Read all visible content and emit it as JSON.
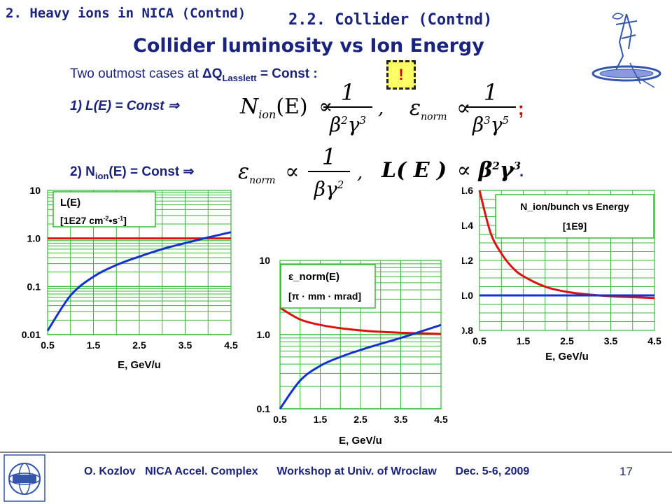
{
  "header": {
    "section": "2. Heavy ions in NICA (Contnd)",
    "subsection": "2.2. Collider (Contnd)",
    "title": "Collider luminosity vs Ion Energy"
  },
  "intro": {
    "text_a": "Two outmost cases at ",
    "delta": "Δ",
    "q": "Q",
    "q_sub": "Lasslett",
    "text_b": " = Const :",
    "bang": "!"
  },
  "case1": {
    "label": "1) L(E) = Const  ⇒",
    "f1_lhs": "N",
    "f1_lhs_sub": "ion",
    "f1_arg": "(E)",
    "prop": "∝",
    "one": "1",
    "beta": "β",
    "gamma": "γ",
    "exp2": "2",
    "exp3": "3",
    "exp5": "5",
    "eps": "ε",
    "eps_sub": "norm",
    "comma": ",",
    "semicolon": ";"
  },
  "case2": {
    "label_a": "2) N",
    "label_sub": "ion",
    "label_b": "(E) = Const ⇒",
    "lhs2": "L( E )",
    "period": "."
  },
  "footer": {
    "text": "O. Kozlov   NICA Accel. Complex      Workshop at Univ. of Wroclaw      Dec. 5-6, 2009",
    "page": "17"
  },
  "logos": {
    "left": "jinr-logo",
    "right": "nica-logo"
  },
  "colors": {
    "red": "#dd1111",
    "blue": "#1133cc",
    "grid": "#33bb33",
    "text": "#1a237e"
  },
  "chart_data": [
    {
      "type": "line",
      "scale": "log",
      "ylim": [
        0.01,
        10
      ],
      "xlim": [
        0.5,
        4.5
      ],
      "xticks": [
        "0.5",
        "1.5",
        "2.5",
        "3.5",
        "4.5"
      ],
      "yticks": [
        "0.01",
        "0.1",
        "1.0",
        "10"
      ],
      "xlabel": "E, GeV/u",
      "legend_title": "L(E)",
      "legend_unit": "[1E27 cm",
      "legend_unit_e1": "-2",
      "legend_unit_mid": "•s",
      "legend_unit_e2": "-1",
      "legend_unit_end": "]",
      "series": [
        {
          "color": "#dd1111",
          "x": [
            0.5,
            4.5
          ],
          "y": [
            1.0,
            1.0
          ]
        },
        {
          "color": "#1133cc",
          "x": [
            0.5,
            1.0,
            1.5,
            2.0,
            2.5,
            3.0,
            3.5,
            4.0,
            4.5
          ],
          "y": [
            0.012,
            0.065,
            0.16,
            0.28,
            0.42,
            0.6,
            0.8,
            1.05,
            1.35
          ]
        }
      ]
    },
    {
      "type": "line",
      "scale": "log",
      "ylim": [
        0.1,
        10
      ],
      "xlim": [
        0.5,
        4.5
      ],
      "xticks": [
        "0.5",
        "1.5",
        "2.5",
        "3.5",
        "4.5"
      ],
      "yticks": [
        "0.1",
        "1.0",
        "10"
      ],
      "xlabel": "E, GeV/u",
      "legend_title_eps": "ε",
      "legend_title": "_norm(E)",
      "legend_unit_a": "[",
      "legend_unit_pi": "π",
      "legend_unit_b": " · mm · mrad]",
      "series": [
        {
          "color": "#dd1111",
          "x": [
            0.5,
            1.0,
            1.5,
            2.0,
            2.5,
            3.0,
            3.5,
            4.0,
            4.5
          ],
          "y": [
            2.3,
            1.6,
            1.35,
            1.22,
            1.14,
            1.09,
            1.06,
            1.04,
            1.02
          ]
        },
        {
          "color": "#1133cc",
          "x": [
            0.5,
            1.0,
            1.5,
            2.0,
            2.5,
            3.0,
            3.5,
            4.0,
            4.5
          ],
          "y": [
            0.1,
            0.24,
            0.38,
            0.5,
            0.62,
            0.75,
            0.9,
            1.1,
            1.35
          ]
        }
      ]
    },
    {
      "type": "line",
      "scale": "linear",
      "ylim": [
        0.8,
        1.6
      ],
      "xlim": [
        0.5,
        4.5
      ],
      "xticks": [
        "0.5",
        "1.5",
        "2.5",
        "3.5",
        "4.5"
      ],
      "yticks": [
        "0.8",
        "1.0",
        "1.2",
        "1.4",
        "1.6"
      ],
      "xlabel": "E, GeV/u",
      "legend_title": "N_ion/bunch vs Energy",
      "legend_unit": "[1E9]",
      "series": [
        {
          "color": "#dd1111",
          "x": [
            0.5,
            0.75,
            1.0,
            1.25,
            1.5,
            2.0,
            2.5,
            3.0,
            3.5,
            4.0,
            4.5
          ],
          "y": [
            1.6,
            1.36,
            1.24,
            1.16,
            1.11,
            1.05,
            1.02,
            1.005,
            0.995,
            0.99,
            0.985
          ]
        },
        {
          "color": "#1133cc",
          "x": [
            0.5,
            4.5
          ],
          "y": [
            1.0,
            1.0
          ]
        }
      ]
    }
  ]
}
